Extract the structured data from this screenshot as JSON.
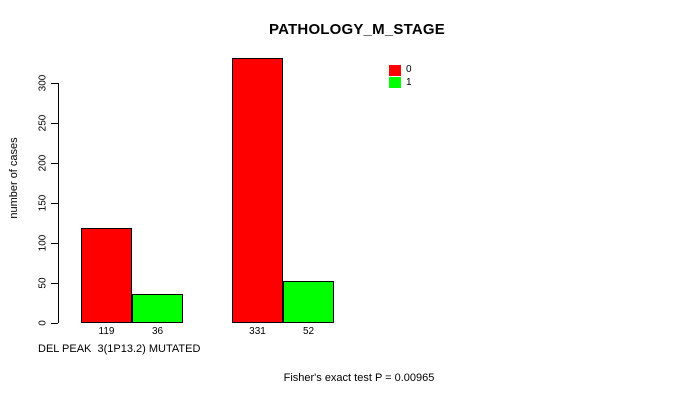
{
  "chart_data": {
    "type": "bar",
    "title": "PATHOLOGY_M_STAGE",
    "ylabel": "number of cases",
    "xlabel": "DEL PEAK  3(1P13.2) MUTATED",
    "annotation": "Fisher's exact test P = 0.00965",
    "ylim": [
      0,
      331
    ],
    "yticks": [
      0,
      50,
      100,
      150,
      200,
      250,
      300
    ],
    "grid": false,
    "legend": {
      "position": "top-right",
      "entries": [
        {
          "label": "0",
          "color": "#FF0000"
        },
        {
          "label": "1",
          "color": "#00FF00"
        }
      ]
    },
    "groups": [
      {
        "bars": [
          {
            "series": "0",
            "value": 119,
            "label": "119",
            "color": "#FF0000"
          },
          {
            "series": "1",
            "value": 36,
            "label": "36",
            "color": "#00FF00"
          }
        ]
      },
      {
        "bars": [
          {
            "series": "0",
            "value": 331,
            "label": "331",
            "color": "#FF0000"
          },
          {
            "series": "1",
            "value": 52,
            "label": "52",
            "color": "#00FF00"
          }
        ]
      }
    ],
    "colors": {
      "series_0": "#FF0000",
      "series_1": "#00FF00",
      "axis": "#000000",
      "background": "#FFFFFF"
    }
  }
}
